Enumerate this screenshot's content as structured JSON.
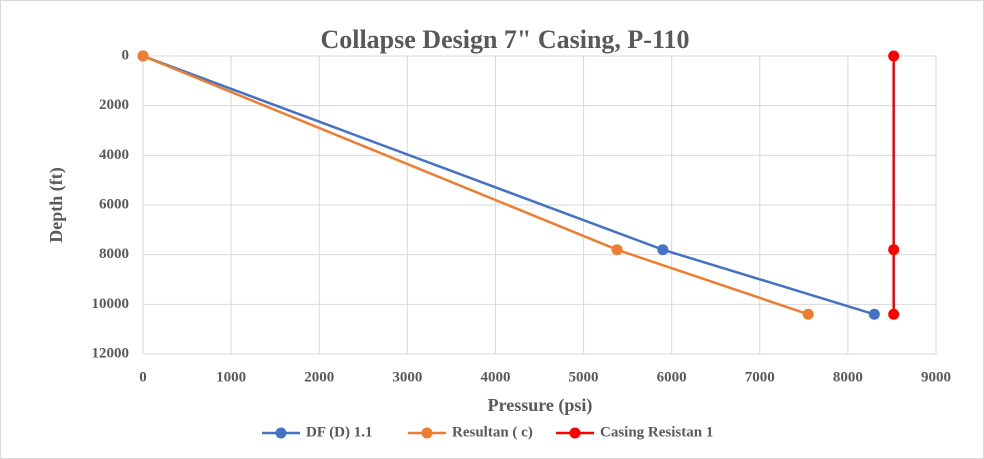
{
  "chart_data": {
    "type": "line",
    "title": "Collapse Design 7\" Casing, P-110",
    "x_label": "Pressure (psi)",
    "y_label": "Depth (ft)",
    "xlim": [
      0,
      9000
    ],
    "xticks": [
      0,
      1000,
      2000,
      3000,
      4000,
      5000,
      6000,
      7000,
      8000,
      9000
    ],
    "ylim": [
      0,
      12000
    ],
    "yticks": [
      0,
      2000,
      4000,
      6000,
      8000,
      10000,
      12000
    ],
    "y_inverted": true,
    "grid": true,
    "legend": "bottom",
    "series": [
      {
        "name": "DF (D) 1.1",
        "color": "#4472c4",
        "x": [
          0,
          5900,
          8300
        ],
        "values": [
          0,
          7800,
          10400
        ]
      },
      {
        "name": "Resultan ( c)",
        "color": "#ed7d31",
        "x": [
          0,
          5380,
          7550
        ],
        "values": [
          0,
          7800,
          10400
        ]
      },
      {
        "name": "Casing Resistan 1",
        "color": "#ff0000",
        "x": [
          8520,
          8520,
          8520
        ],
        "values": [
          0,
          7800,
          10400
        ]
      }
    ]
  }
}
